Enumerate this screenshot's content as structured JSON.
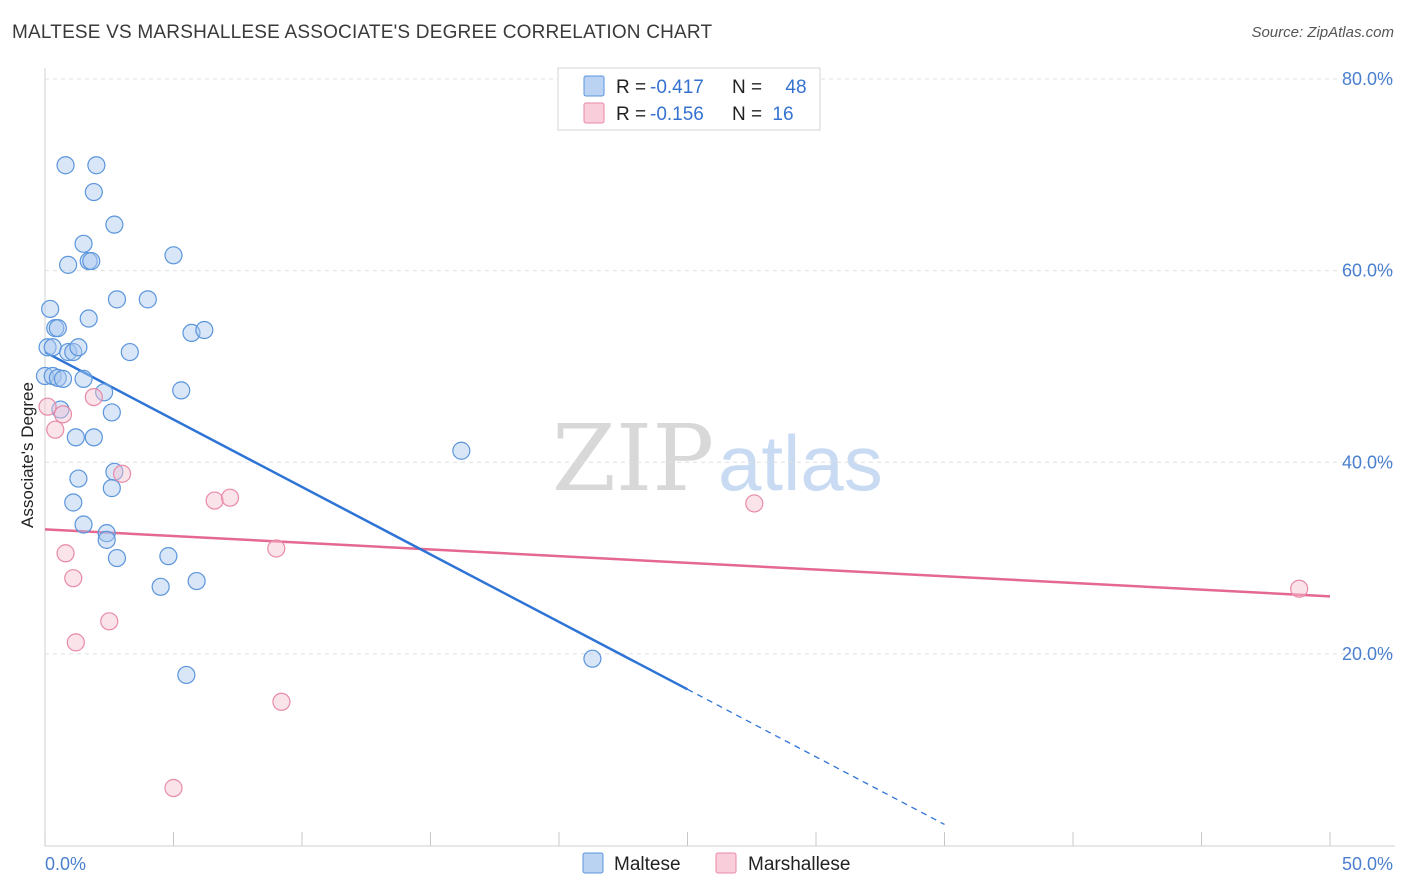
{
  "title": "MALTESE VS MARSHALLESE ASSOCIATE'S DEGREE CORRELATION CHART",
  "source": "Source: ZipAtlas.com",
  "watermark": {
    "zip": "ZIP",
    "atlas": "atlas"
  },
  "colors": {
    "maltese_fill": "#a9c8f0",
    "maltese_stroke": "#5b95dc",
    "maltese_line": "#2e74d6",
    "marshallese_fill": "#f7c0d1",
    "marshallese_stroke": "#e88aa8",
    "marshallese_line": "#e46890",
    "grid": "#e0e0e0",
    "tick_text": "#4a7fcf"
  },
  "legend": {
    "r_label": "R =",
    "n_label": "N =",
    "rows": [
      {
        "r": "-0.417",
        "n": "48"
      },
      {
        "r": "-0.156",
        "n": "16"
      }
    ]
  },
  "bottom_legend": [
    "Maltese",
    "Marshallese"
  ],
  "chart_data": {
    "type": "scatter",
    "title": "MALTESE VS MARSHALLESE ASSOCIATE'S DEGREE CORRELATION CHART",
    "xlabel": "",
    "ylabel": "Associate's Degree",
    "xlim": [
      0,
      50
    ],
    "ylim": [
      0,
      80
    ],
    "x_tick_labels": [
      "0.0%",
      "50.0%"
    ],
    "y_ticks": [
      20,
      40,
      60,
      80
    ],
    "y_tick_labels": [
      "20.0%",
      "40.0%",
      "60.0%",
      "80.0%"
    ],
    "grid": true,
    "legend_position": "top-center",
    "series": [
      {
        "name": "Maltese",
        "r": -0.417,
        "n": 48,
        "points": [
          [
            0.8,
            71.0
          ],
          [
            2.0,
            71.0
          ],
          [
            1.9,
            68.2
          ],
          [
            2.7,
            64.8
          ],
          [
            1.5,
            62.8
          ],
          [
            5.0,
            61.6
          ],
          [
            0.9,
            60.6
          ],
          [
            1.7,
            61.0
          ],
          [
            1.8,
            61.0
          ],
          [
            2.8,
            57.0
          ],
          [
            4.0,
            57.0
          ],
          [
            0.2,
            56.0
          ],
          [
            1.7,
            55.0
          ],
          [
            0.4,
            54.0
          ],
          [
            0.5,
            54.0
          ],
          [
            5.7,
            53.5
          ],
          [
            6.2,
            53.8
          ],
          [
            0.1,
            52.0
          ],
          [
            0.3,
            52.0
          ],
          [
            0.9,
            51.5
          ],
          [
            1.1,
            51.5
          ],
          [
            1.3,
            52.0
          ],
          [
            3.3,
            51.5
          ],
          [
            0.0,
            49.0
          ],
          [
            0.3,
            49.0
          ],
          [
            0.5,
            48.8
          ],
          [
            0.7,
            48.7
          ],
          [
            1.5,
            48.7
          ],
          [
            5.3,
            47.5
          ],
          [
            2.3,
            47.3
          ],
          [
            0.6,
            45.5
          ],
          [
            2.6,
            45.2
          ],
          [
            1.9,
            42.6
          ],
          [
            1.2,
            42.6
          ],
          [
            16.2,
            41.2
          ],
          [
            2.7,
            39.0
          ],
          [
            1.3,
            38.3
          ],
          [
            2.6,
            37.3
          ],
          [
            1.1,
            35.8
          ],
          [
            1.5,
            33.5
          ],
          [
            2.4,
            32.6
          ],
          [
            2.4,
            31.9
          ],
          [
            2.8,
            30.0
          ],
          [
            4.8,
            30.2
          ],
          [
            5.9,
            27.6
          ],
          [
            4.5,
            27.0
          ],
          [
            21.3,
            19.5
          ],
          [
            5.5,
            17.8
          ]
        ],
        "trend": {
          "x0": 0.0,
          "y0": 51.5,
          "x1": 25.0,
          "y1": 16.3,
          "dash_to_x": 35.0,
          "dash_to_y": 2.2
        }
      },
      {
        "name": "Marshallese",
        "r": -0.156,
        "n": 16,
        "points": [
          [
            0.1,
            45.8
          ],
          [
            0.7,
            45.0
          ],
          [
            0.4,
            43.4
          ],
          [
            1.9,
            46.8
          ],
          [
            3.0,
            38.8
          ],
          [
            6.6,
            36.0
          ],
          [
            7.2,
            36.3
          ],
          [
            27.6,
            35.7
          ],
          [
            0.8,
            30.5
          ],
          [
            9.0,
            31.0
          ],
          [
            1.1,
            27.9
          ],
          [
            48.8,
            26.8
          ],
          [
            2.5,
            23.4
          ],
          [
            1.2,
            21.2
          ],
          [
            9.2,
            15.0
          ],
          [
            5.0,
            6.0
          ]
        ],
        "trend": {
          "x0": 0.0,
          "y0": 33.0,
          "x1": 50.0,
          "y1": 26.0
        }
      }
    ]
  }
}
